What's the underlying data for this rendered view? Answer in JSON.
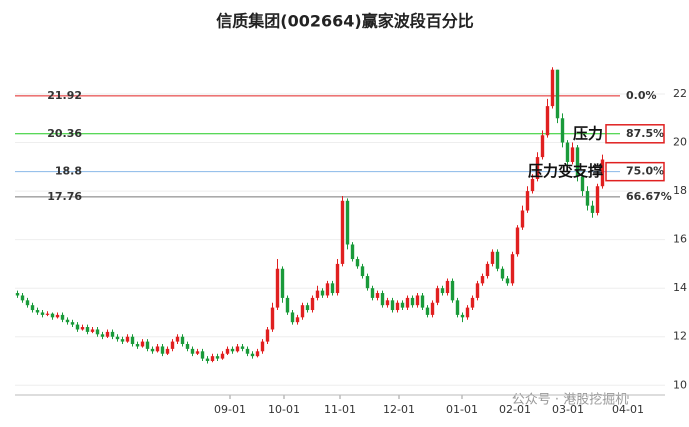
{
  "chart_data": {
    "type": "candlestick",
    "title": "信质集团(002664)赢家波段百分比",
    "xlim": [
      0,
      130
    ],
    "xticks": [
      {
        "value": 43,
        "label": "09-01"
      },
      {
        "value": 53.8,
        "label": "10-01"
      },
      {
        "value": 65,
        "label": "11-01"
      },
      {
        "value": 76.8,
        "label": "12-01"
      },
      {
        "value": 89.4,
        "label": "01-01"
      },
      {
        "value": 100,
        "label": "02-01"
      },
      {
        "value": 110.6,
        "label": "03-01"
      },
      {
        "value": 122.6,
        "label": "04-01"
      }
    ],
    "ylim": [
      9.6,
      23.4
    ],
    "yticks": [
      10,
      12,
      14,
      16,
      18,
      20,
      22
    ],
    "grid": true,
    "up_color": "#e02020",
    "down_color": "#1a9a3a",
    "open": [
      13.8,
      13.7,
      13.5,
      13.3,
      13.1,
      13.0,
      12.9,
      12.95,
      12.8,
      12.9,
      12.7,
      12.6,
      12.5,
      12.3,
      12.4,
      12.2,
      12.3,
      12.1,
      12.0,
      12.2,
      12.0,
      11.9,
      11.8,
      12.0,
      11.7,
      11.6,
      11.8,
      11.5,
      11.4,
      11.6,
      11.3,
      11.5,
      11.8,
      12.0,
      11.7,
      11.5,
      11.3,
      11.4,
      11.1,
      11.0,
      11.2,
      11.1,
      11.3,
      11.5,
      11.4,
      11.6,
      11.5,
      11.3,
      11.2,
      11.4,
      11.8,
      12.3,
      13.2,
      14.8,
      13.6,
      13.0,
      12.6,
      12.8,
      13.3,
      13.1,
      13.6,
      13.9,
      13.7,
      14.2,
      13.8,
      15.0,
      17.6,
      15.8,
      15.2,
      14.9,
      14.5,
      14.0,
      13.6,
      13.8,
      13.3,
      13.5,
      13.1,
      13.4,
      13.2,
      13.6,
      13.3,
      13.7,
      13.2,
      12.9,
      13.4,
      14.0,
      13.8,
      14.3,
      13.5,
      12.9,
      12.8,
      13.2,
      13.6,
      14.2,
      14.5,
      15.0,
      15.5,
      14.8,
      14.4,
      14.2,
      15.4,
      16.5,
      17.2,
      18.0,
      18.5,
      19.4,
      20.3,
      21.5,
      23.0,
      21.0,
      20.0,
      19.2,
      19.8,
      18.6,
      18.0,
      17.4,
      17.1,
      18.2
    ],
    "high": [
      13.9,
      13.8,
      13.6,
      13.4,
      13.2,
      13.1,
      13.05,
      13.0,
      13.0,
      13.0,
      12.8,
      12.7,
      12.6,
      12.5,
      12.5,
      12.4,
      12.4,
      12.2,
      12.3,
      12.3,
      12.1,
      12.0,
      12.1,
      12.1,
      11.8,
      11.9,
      11.9,
      11.6,
      11.7,
      11.7,
      11.6,
      11.9,
      12.1,
      12.1,
      11.8,
      11.6,
      11.5,
      11.5,
      11.2,
      11.3,
      11.3,
      11.4,
      11.6,
      11.6,
      11.7,
      11.7,
      11.6,
      11.4,
      11.5,
      11.9,
      12.4,
      13.4,
      15.2,
      14.9,
      13.7,
      13.1,
      12.9,
      13.4,
      13.4,
      13.7,
      14.1,
      14.0,
      14.3,
      14.3,
      15.2,
      17.8,
      17.7,
      15.9,
      15.3,
      15.0,
      14.6,
      14.1,
      13.9,
      13.9,
      13.6,
      13.6,
      13.5,
      13.5,
      13.7,
      13.7,
      13.8,
      13.8,
      13.3,
      13.5,
      14.1,
      14.1,
      14.4,
      14.4,
      13.6,
      13.0,
      13.3,
      13.7,
      14.3,
      14.6,
      15.1,
      15.6,
      15.6,
      14.9,
      14.5,
      15.5,
      16.6,
      17.4,
      18.2,
      18.7,
      19.6,
      20.5,
      21.8,
      23.1,
      23.0,
      21.2,
      20.1,
      20.0,
      19.9,
      18.8,
      18.2,
      17.6,
      18.3,
      19.5
    ],
    "low": [
      13.6,
      13.4,
      13.2,
      13.0,
      12.9,
      12.8,
      12.85,
      12.7,
      12.75,
      12.6,
      12.5,
      12.4,
      12.2,
      12.25,
      12.1,
      12.15,
      12.0,
      11.9,
      11.95,
      11.9,
      11.8,
      11.7,
      11.75,
      11.6,
      11.5,
      11.55,
      11.4,
      11.3,
      11.35,
      11.2,
      11.25,
      11.4,
      11.7,
      11.6,
      11.4,
      11.2,
      11.25,
      11.0,
      10.9,
      10.95,
      11.0,
      11.05,
      11.25,
      11.3,
      11.35,
      11.4,
      11.2,
      11.1,
      11.15,
      11.3,
      11.7,
      12.2,
      13.1,
      13.4,
      12.9,
      12.5,
      12.5,
      12.7,
      13.0,
      13.0,
      13.5,
      13.6,
      13.6,
      13.7,
      13.7,
      14.9,
      15.6,
      15.1,
      14.8,
      14.4,
      13.9,
      13.5,
      13.5,
      13.2,
      13.2,
      13.0,
      13.0,
      13.1,
      13.1,
      13.2,
      13.2,
      13.1,
      12.8,
      12.8,
      13.3,
      13.7,
      13.7,
      13.4,
      12.8,
      12.6,
      12.7,
      13.1,
      13.5,
      14.1,
      14.4,
      14.9,
      14.7,
      14.3,
      14.1,
      14.1,
      15.3,
      16.4,
      17.1,
      17.9,
      18.4,
      19.3,
      20.2,
      21.4,
      20.8,
      19.8,
      19.0,
      19.1,
      18.4,
      17.8,
      17.2,
      16.9,
      17.0,
      18.1
    ],
    "close": [
      13.7,
      13.5,
      13.3,
      13.1,
      13.0,
      12.9,
      12.95,
      12.8,
      12.9,
      12.7,
      12.6,
      12.5,
      12.3,
      12.4,
      12.2,
      12.3,
      12.1,
      12.0,
      12.2,
      12.0,
      11.9,
      11.8,
      12.0,
      11.7,
      11.6,
      11.8,
      11.5,
      11.4,
      11.6,
      11.3,
      11.5,
      11.8,
      12.0,
      11.7,
      11.5,
      11.3,
      11.4,
      11.1,
      11.0,
      11.2,
      11.1,
      11.3,
      11.5,
      11.4,
      11.6,
      11.5,
      11.3,
      11.2,
      11.4,
      11.8,
      12.3,
      13.2,
      14.8,
      13.6,
      13.0,
      12.6,
      12.8,
      13.3,
      13.1,
      13.6,
      13.9,
      13.7,
      14.2,
      13.8,
      15.0,
      17.6,
      15.8,
      15.2,
      14.9,
      14.5,
      14.0,
      13.6,
      13.8,
      13.3,
      13.5,
      13.1,
      13.4,
      13.2,
      13.6,
      13.3,
      13.7,
      13.2,
      12.9,
      13.4,
      14.0,
      13.8,
      14.3,
      13.5,
      12.9,
      12.8,
      13.2,
      13.6,
      14.2,
      14.5,
      15.0,
      15.5,
      14.8,
      14.4,
      14.2,
      15.4,
      16.5,
      17.2,
      18.0,
      18.5,
      19.4,
      20.3,
      21.5,
      23.0,
      21.0,
      20.0,
      19.2,
      19.8,
      18.6,
      18.0,
      17.4,
      17.1,
      18.2,
      19.3
    ],
    "levels": [
      {
        "value": 21.92,
        "percent_label": "0.0%",
        "color": "#e02020"
      },
      {
        "value": 20.36,
        "percent_label": "87.5%",
        "color": "#22cc22",
        "boxed": true
      },
      {
        "value": 18.8,
        "percent_label": "75.0%",
        "color": "#8ab8e8",
        "boxed": true
      },
      {
        "value": 17.76,
        "percent_label": "66.67%",
        "color": "#777777"
      }
    ],
    "annotations": [
      {
        "text": "压力",
        "level": 1
      },
      {
        "text": "压力变支撑",
        "level": 2
      }
    ],
    "watermark": "公众号 · 港股挖掘机"
  }
}
